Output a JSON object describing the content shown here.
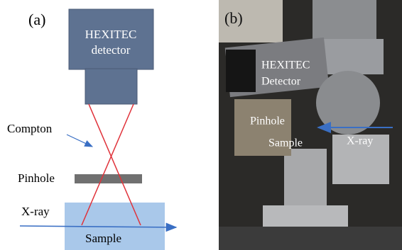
{
  "panel_a": {
    "label": "(a)",
    "detector": [
      "HEXITEC",
      "detector"
    ],
    "compton": "Compton",
    "pinhole": "Pinhole",
    "xray": "X-ray",
    "sample": "Sample"
  },
  "panel_b": {
    "label": "(b)",
    "detector": [
      "HEXITEC",
      "Detector"
    ],
    "pinhole": "Pinhole",
    "sample": "Sample",
    "xray": "X-ray"
  }
}
